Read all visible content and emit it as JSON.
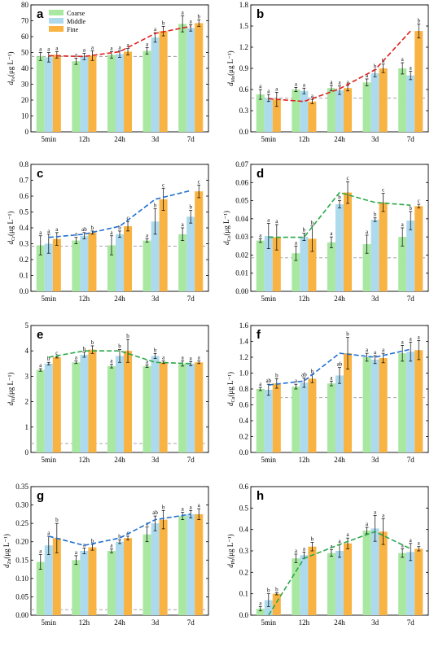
{
  "figure": {
    "series_colors": {
      "Coarse": "#a8e8a0",
      "Middle": "#aedaee",
      "Fine": "#f9b342"
    }
  },
  "chart_data": [
    {
      "panel": "a",
      "type": "bar",
      "ylabel_sym": "d",
      "ylabel_sub": "Fe",
      "ylabel_unit": "(μg L⁻¹)",
      "categories": [
        "5min",
        "12h",
        "24h",
        "3d",
        "7d"
      ],
      "ylim": [
        0,
        80
      ],
      "yticks": [
        0,
        10,
        20,
        30,
        40,
        50,
        60,
        70,
        80
      ],
      "tick_fmt": 0,
      "baseline": 47.5,
      "trend_color": "#e0201e",
      "legend": [
        "Coarse",
        "Middle",
        "Fine"
      ],
      "series": [
        {
          "name": "Coarse",
          "values": [
            47.5,
            44.5,
            48.5,
            51,
            68
          ],
          "errors": [
            2.5,
            2,
            2,
            2,
            5
          ],
          "letters": [
            "a",
            "a",
            "a",
            "a",
            "a"
          ]
        },
        {
          "name": "Middle",
          "values": [
            47,
            47.5,
            49,
            59.5,
            65.5
          ],
          "errors": [
            3,
            2,
            2,
            3,
            2
          ],
          "letters": [
            "a",
            "a",
            "a",
            "a",
            "a"
          ]
        },
        {
          "name": "Fine",
          "values": [
            48.5,
            48,
            50.5,
            63.5,
            68.5
          ],
          "errors": [
            2,
            3,
            2,
            3,
            2
          ],
          "letters": [
            "a",
            "a",
            "a",
            "b",
            "b"
          ]
        }
      ],
      "trend": [
        48,
        47.5,
        50.5,
        62,
        66.5
      ]
    },
    {
      "panel": "b",
      "type": "bar",
      "ylabel_sym": "d",
      "ylabel_sub": "Mn",
      "ylabel_unit": "(μg L⁻¹)",
      "categories": [
        "5min",
        "12h",
        "24h",
        "3d",
        "7d"
      ],
      "ylim": [
        0,
        1.8
      ],
      "yticks": [
        0,
        0.3,
        0.6,
        0.9,
        1.2,
        1.5,
        1.8
      ],
      "tick_fmt": 1,
      "baseline": 0.48,
      "trend_color": "#e0201e",
      "series": [
        {
          "name": "Coarse",
          "values": [
            0.53,
            0.6,
            0.62,
            0.7,
            0.9
          ],
          "errors": [
            0.07,
            0.03,
            0.04,
            0.05,
            0.08
          ],
          "letters": [
            "a",
            "a",
            "a",
            "a",
            "a"
          ]
        },
        {
          "name": "Middle",
          "values": [
            0.48,
            0.58,
            0.59,
            0.83,
            0.8
          ],
          "errors": [
            0.05,
            0.04,
            0.06,
            0.05,
            0.06
          ],
          "letters": [
            "a",
            "a",
            "a",
            "b",
            "a"
          ]
        },
        {
          "name": "Fine",
          "values": [
            0.46,
            0.43,
            0.62,
            0.9,
            1.43
          ],
          "errors": [
            0.1,
            0.03,
            0.04,
            0.06,
            0.1
          ],
          "letters": [
            "a",
            "a",
            "a",
            "b",
            "b"
          ]
        }
      ],
      "trend": [
        0.47,
        0.43,
        0.61,
        0.88,
        1.43
      ]
    },
    {
      "panel": "c",
      "type": "bar",
      "ylabel_sym": "d",
      "ylabel_sub": "Cr",
      "ylabel_unit": "(μg L⁻¹)",
      "categories": [
        "5min",
        "12h",
        "24h",
        "3d",
        "7d"
      ],
      "ylim": [
        0,
        0.8
      ],
      "yticks": [
        0,
        0.1,
        0.2,
        0.3,
        0.4,
        0.5,
        0.6,
        0.7,
        0.8
      ],
      "tick_fmt": 1,
      "baseline": 0.285,
      "trend_color": "#1f6fd1",
      "series": [
        {
          "name": "Coarse",
          "values": [
            0.29,
            0.32,
            0.29,
            0.32,
            0.36
          ],
          "errors": [
            0.06,
            0.02,
            0.06,
            0.01,
            0.04
          ],
          "letters": [
            "a",
            "a",
            "a",
            "a",
            "a"
          ]
        },
        {
          "name": "Middle",
          "values": [
            0.3,
            0.35,
            0.36,
            0.44,
            0.47
          ],
          "errors": [
            0.06,
            0.02,
            0.02,
            0.08,
            0.04
          ],
          "letters": [
            "a",
            "ab",
            "b",
            "b",
            "b"
          ]
        },
        {
          "name": "Fine",
          "values": [
            0.33,
            0.37,
            0.41,
            0.58,
            0.63
          ],
          "errors": [
            0.04,
            0.01,
            0.03,
            0.07,
            0.04
          ],
          "letters": [
            "a",
            "b",
            "c",
            "c",
            "c"
          ]
        }
      ],
      "trend": [
        0.34,
        0.36,
        0.41,
        0.58,
        0.635
      ]
    },
    {
      "panel": "d",
      "type": "bar",
      "ylabel_sym": "d",
      "ylabel_sub": "Co",
      "ylabel_unit": "(μg L⁻¹)",
      "categories": [
        "5min",
        "12h",
        "24h",
        "3d",
        "7d"
      ],
      "ylim": [
        0,
        0.07
      ],
      "yticks": [
        0,
        0.01,
        0.02,
        0.03,
        0.04,
        0.05,
        0.06,
        0.07
      ],
      "tick_fmt": 2,
      "baseline": 0.0185,
      "trend_color": "#2aa84a",
      "series": [
        {
          "name": "Coarse",
          "values": [
            0.028,
            0.021,
            0.027,
            0.026,
            0.03
          ],
          "errors": [
            0.001,
            0.004,
            0.003,
            0.005,
            0.005
          ],
          "letters": [
            "a",
            "a",
            "a",
            "a",
            "a"
          ]
        },
        {
          "name": "Middle",
          "values": [
            0.0305,
            0.03,
            0.048,
            0.0395,
            0.039
          ],
          "errors": [
            0.007,
            0.002,
            0.002,
            0.001,
            0.005
          ],
          "letters": [
            "a",
            "b",
            "b",
            "b",
            "b"
          ]
        },
        {
          "name": "Fine",
          "values": [
            0.0298,
            0.029,
            0.0545,
            0.049,
            0.047
          ],
          "errors": [
            0.007,
            0.007,
            0.006,
            0.005,
            0.001
          ],
          "letters": [
            "a",
            "b",
            "c",
            "c",
            "c"
          ]
        }
      ],
      "trend": [
        0.0298,
        0.0298,
        0.0545,
        0.049,
        0.0475
      ]
    },
    {
      "panel": "e",
      "type": "bar",
      "ylabel_sym": "d",
      "ylabel_sub": "Ni",
      "ylabel_unit": "(μg L⁻¹)",
      "categories": [
        "5min",
        "12h",
        "24h",
        "3d",
        "7d"
      ],
      "ylim": [
        0,
        5
      ],
      "yticks": [
        0,
        1,
        2,
        3,
        4,
        5
      ],
      "tick_fmt": 0,
      "baseline": 0.35,
      "trend_color": "#2aa84a",
      "series": [
        {
          "name": "Coarse",
          "values": [
            3.25,
            3.55,
            3.4,
            3.4,
            3.5
          ],
          "errors": [
            0.05,
            0.05,
            0.07,
            0.05,
            0.1
          ],
          "letters": [
            "a",
            "a",
            "a",
            "a",
            "a"
          ]
        },
        {
          "name": "Middle",
          "values": [
            3.5,
            3.85,
            3.8,
            3.8,
            3.5
          ],
          "errors": [
            0.05,
            0.1,
            0.25,
            0.1,
            0.08
          ],
          "letters": [
            "b",
            "b",
            "b",
            "b",
            "a"
          ]
        },
        {
          "name": "Fine",
          "values": [
            3.75,
            4.05,
            4.0,
            3.55,
            3.55
          ],
          "errors": [
            0.03,
            0.15,
            0.45,
            0.05,
            0.05
          ],
          "letters": [
            "c",
            "b",
            "b",
            "a",
            "a"
          ]
        }
      ],
      "trend": [
        3.75,
        4.0,
        4.0,
        3.55,
        3.5
      ]
    },
    {
      "panel": "f",
      "type": "bar",
      "ylabel_sym": "d",
      "ylabel_sub": "Cu",
      "ylabel_unit": "(μg L⁻¹)",
      "categories": [
        "5min",
        "12h",
        "24h",
        "3d",
        "7d"
      ],
      "ylim": [
        0,
        1.6
      ],
      "yticks": [
        0,
        0.2,
        0.4,
        0.6,
        0.8,
        1.0,
        1.2,
        1.4,
        1.6
      ],
      "tick_fmt": 1,
      "baseline": 0.69,
      "trend_color": "#1f6fd1",
      "series": [
        {
          "name": "Coarse",
          "values": [
            0.8,
            0.83,
            0.87,
            1.2,
            1.25
          ],
          "errors": [
            0.02,
            0.03,
            0.03,
            0.05,
            0.1
          ],
          "letters": [
            "a",
            "a",
            "a",
            "a",
            "a"
          ]
        },
        {
          "name": "Middle",
          "values": [
            0.79,
            0.88,
            0.97,
            1.17,
            1.27
          ],
          "errors": [
            0.07,
            0.06,
            0.1,
            0.05,
            0.12
          ],
          "letters": [
            "ab",
            "ab",
            "ab",
            "a",
            "a"
          ]
        },
        {
          "name": "Fine",
          "values": [
            0.87,
            0.93,
            1.25,
            1.19,
            1.29
          ],
          "errors": [
            0.06,
            0.05,
            0.2,
            0.06,
            0.12
          ],
          "letters": [
            "b",
            "b",
            "b",
            "a",
            "a"
          ]
        }
      ],
      "trend": [
        0.85,
        0.9,
        1.25,
        1.2,
        1.3
      ]
    },
    {
      "panel": "g",
      "type": "bar",
      "ylabel_sym": "d",
      "ylabel_sub": "Zn",
      "ylabel_unit": "(μg L⁻¹)",
      "categories": [
        "5min",
        "12h",
        "24h",
        "3d",
        "7d"
      ],
      "ylim": [
        0,
        0.35
      ],
      "yticks": [
        0,
        0.05,
        0.1,
        0.15,
        0.2,
        0.25,
        0.3,
        0.35
      ],
      "tick_fmt": 2,
      "baseline": 0.015,
      "trend_color": "#1f6fd1",
      "series": [
        {
          "name": "Coarse",
          "values": [
            0.145,
            0.15,
            0.175,
            0.22,
            0.27
          ],
          "errors": [
            0.02,
            0.012,
            0.005,
            0.02,
            0.01
          ],
          "letters": [
            "a",
            "a",
            "a",
            "a",
            "a"
          ]
        },
        {
          "name": "Middle",
          "values": [
            0.19,
            0.175,
            0.2,
            0.25,
            0.275
          ],
          "errors": [
            0.025,
            0.008,
            0.005,
            0.02,
            0.01
          ],
          "letters": [
            "a",
            "a",
            "b",
            "ab",
            "a"
          ]
        },
        {
          "name": "Fine",
          "values": [
            0.21,
            0.185,
            0.21,
            0.26,
            0.275
          ],
          "errors": [
            0.04,
            0.008,
            0.005,
            0.025,
            0.015
          ],
          "letters": [
            "b",
            "b",
            "c",
            "b",
            "a"
          ]
        }
      ],
      "trend": [
        0.215,
        0.19,
        0.21,
        0.26,
        0.275
      ]
    },
    {
      "panel": "h",
      "type": "bar",
      "ylabel_sym": "d",
      "ylabel_sub": "Pb",
      "ylabel_unit": "(μg L⁻¹)",
      "categories": [
        "5min",
        "12h",
        "24h",
        "3d",
        "7d"
      ],
      "ylim": [
        0,
        0.6
      ],
      "yticks": [
        0,
        0.1,
        0.2,
        0.3,
        0.4,
        0.5,
        0.6
      ],
      "tick_fmt": 1,
      "baseline": null,
      "trend_color": "#2aa84a",
      "series": [
        {
          "name": "Coarse",
          "values": [
            0.03,
            0.265,
            0.29,
            0.395,
            0.29
          ],
          "errors": [
            0.01,
            0.02,
            0.015,
            0.015,
            0.02
          ],
          "letters": [
            "a",
            "a",
            "a",
            "a",
            "a"
          ]
        },
        {
          "name": "Middle",
          "values": [
            0.07,
            0.28,
            0.3,
            0.405,
            0.295
          ],
          "errors": [
            0.03,
            0.015,
            0.03,
            0.06,
            0.04
          ],
          "letters": [
            "b",
            "a",
            "a",
            "a",
            "a"
          ]
        },
        {
          "name": "Fine",
          "values": [
            0.1,
            0.32,
            0.335,
            0.39,
            0.31
          ],
          "errors": [
            0.005,
            0.02,
            0.025,
            0.06,
            0.01
          ],
          "letters": [
            "b",
            "b",
            "a",
            "a",
            "a"
          ]
        }
      ],
      "trend": [
        0.0,
        0.265,
        0.33,
        0.39,
        0.31
      ]
    }
  ]
}
